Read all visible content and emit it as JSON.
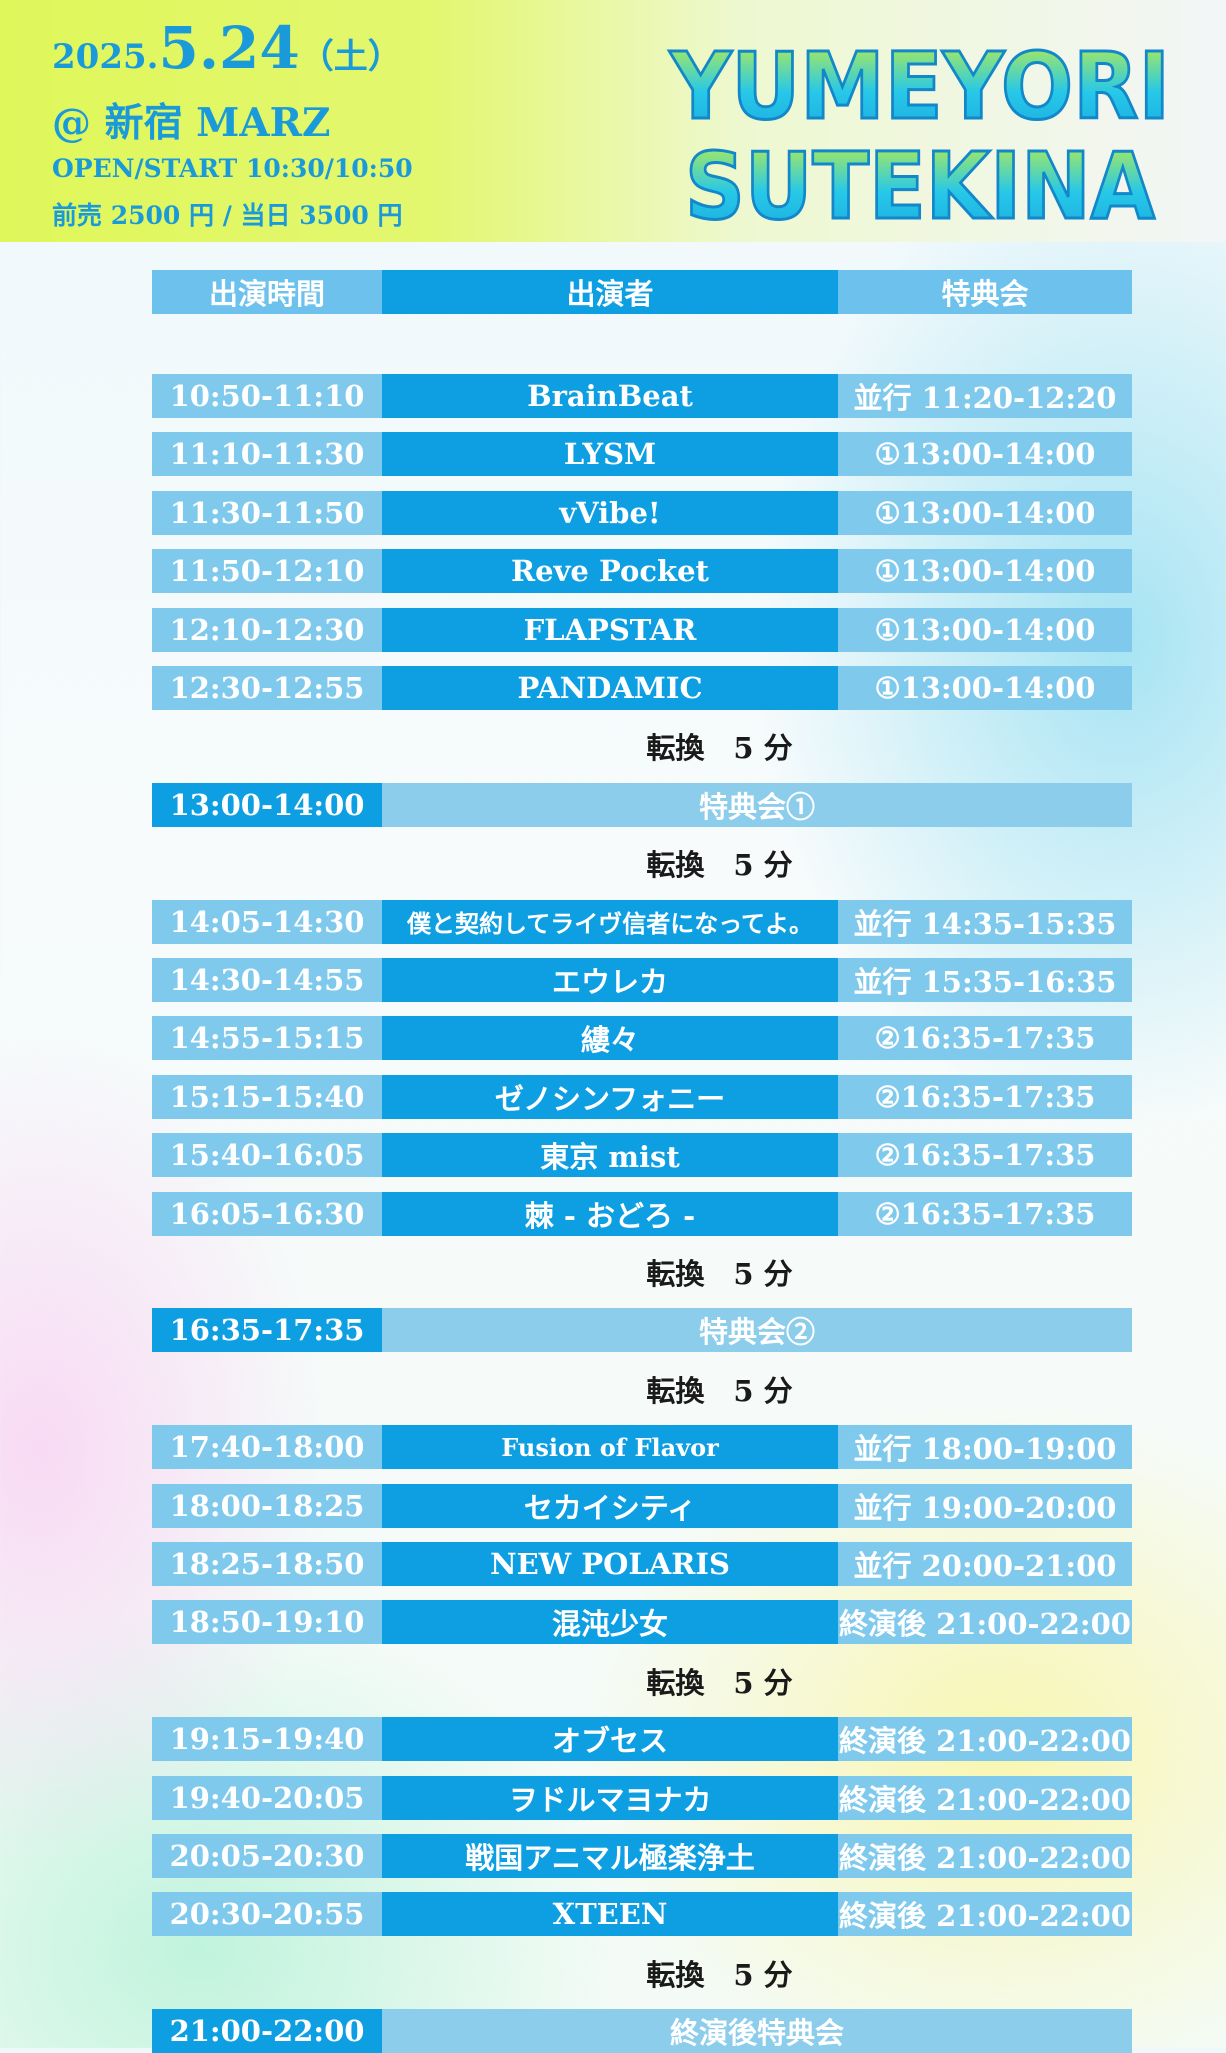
{
  "event": {
    "year": "2025.",
    "monthday": "5.24",
    "dow": "（土）",
    "venue": "@ 新宿 MARZ",
    "open_start": "OPEN/START 10:30/10:50",
    "price": "前売 2500 円 / 当日 3500 円"
  },
  "logo": {
    "line1": "YUMEYORI",
    "line2": "SUTEKINA"
  },
  "table_header": {
    "time": "出演時間",
    "performer": "出演者",
    "bonus": "特典会"
  },
  "change_label": "転換　5 分",
  "blocks": [
    {
      "rows": [
        {
          "time": "10:50-11:10",
          "performer": "BrainBeat",
          "bonus": "並行 11:20-12:20"
        },
        {
          "time": "11:10-11:30",
          "performer": "LYSM",
          "bonus": "①13:00-14:00"
        },
        {
          "time": "11:30-11:50",
          "performer": "vVibe!",
          "bonus": "①13:00-14:00"
        },
        {
          "time": "11:50-12:10",
          "performer": "Reve Pocket",
          "bonus": "①13:00-14:00"
        },
        {
          "time": "12:10-12:30",
          "performer": "FLAPSTAR",
          "bonus": "①13:00-14:00"
        },
        {
          "time": "12:30-12:55",
          "performer": "PANDAMIC",
          "bonus": "①13:00-14:00"
        }
      ]
    },
    {
      "tokuten": {
        "time": "13:00-14:00",
        "label": "特典会①"
      }
    },
    {
      "rows": [
        {
          "time": "14:05-14:30",
          "performer": "僕と契約してライヴ信者になってよ。",
          "bonus": "並行 14:35-15:35"
        },
        {
          "time": "14:30-14:55",
          "performer": "エウレカ",
          "bonus": "並行 15:35-16:35"
        },
        {
          "time": "14:55-15:15",
          "performer": "縷々",
          "bonus": "②16:35-17:35"
        },
        {
          "time": "15:15-15:40",
          "performer": "ゼノシンフォニー",
          "bonus": "②16:35-17:35"
        },
        {
          "time": "15:40-16:05",
          "performer": "東京 mist",
          "bonus": "②16:35-17:35"
        },
        {
          "time": "16:05-16:30",
          "performer": "棘 - おどろ -",
          "bonus": "②16:35-17:35"
        }
      ]
    },
    {
      "tokuten": {
        "time": "16:35-17:35",
        "label": "特典会②"
      }
    },
    {
      "rows": [
        {
          "time": "17:40-18:00",
          "performer": "Fusion of Flavor",
          "bonus": "並行 18:00-19:00"
        },
        {
          "time": "18:00-18:25",
          "performer": "セカイシティ",
          "bonus": "並行 19:00-20:00"
        },
        {
          "time": "18:25-18:50",
          "performer": "NEW POLARIS",
          "bonus": "並行 20:00-21:00"
        },
        {
          "time": "18:50-19:10",
          "performer": "混沌少女",
          "bonus": "終演後 21:00-22:00"
        }
      ]
    },
    {
      "rows": [
        {
          "time": "19:15-19:40",
          "performer": "オブセス",
          "bonus": "終演後 21:00-22:00"
        },
        {
          "time": "19:40-20:05",
          "performer": "ヲドルマヨナカ",
          "bonus": "終演後 21:00-22:00"
        },
        {
          "time": "20:05-20:30",
          "performer": "戦国アニマル極楽浄土",
          "bonus": "終演後 21:00-22:00"
        },
        {
          "time": "20:30-20:55",
          "performer": "XTEEN",
          "bonus": "終演後 21:00-22:00"
        }
      ]
    },
    {
      "tokuten": {
        "time": "21:00-22:00",
        "label": "終演後特典会"
      }
    }
  ],
  "colors": {
    "accent": "#0e9fe3",
    "light_cell": "#7fc9ed",
    "header_bg": "#dff75a",
    "text_blue": "#1a9ad8"
  }
}
